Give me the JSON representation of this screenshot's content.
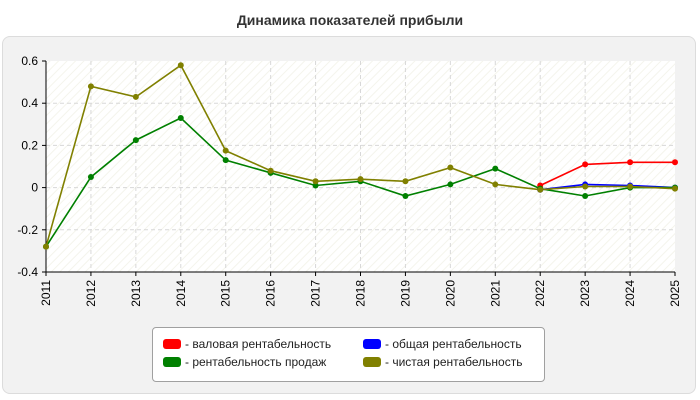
{
  "chart_data": {
    "type": "line",
    "title": "Динамика показателей прибыли",
    "xlabel": "",
    "ylabel": "",
    "x": [
      "2011",
      "2012",
      "2013",
      "2014",
      "2015",
      "2016",
      "2017",
      "2018",
      "2019",
      "2020",
      "2021",
      "2022",
      "2023",
      "2024",
      "2025"
    ],
    "ylim": [
      -0.4,
      0.6
    ],
    "yticks": [
      "0.6",
      "0.4",
      "0.2",
      "0",
      "-0.2",
      "-0.4"
    ],
    "grid": true,
    "legend_position": "bottom",
    "series": [
      {
        "name": "- валовая рентабельность",
        "color": "#ff0000",
        "values": [
          null,
          null,
          null,
          null,
          null,
          null,
          null,
          null,
          null,
          null,
          null,
          0.01,
          0.11,
          0.12,
          0.12
        ]
      },
      {
        "name": "- общая рентабельность",
        "color": "#0000ff",
        "values": [
          null,
          null,
          null,
          null,
          null,
          null,
          null,
          null,
          null,
          null,
          null,
          -0.01,
          0.015,
          0.01,
          0.0
        ]
      },
      {
        "name": "- рентабельность продаж",
        "color": "#008000",
        "values": [
          -0.28,
          0.05,
          0.225,
          0.33,
          0.13,
          0.07,
          0.01,
          0.03,
          -0.04,
          0.015,
          0.09,
          -0.005,
          -0.04,
          0.0,
          0.0
        ]
      },
      {
        "name": "- чистая рентабельность",
        "color": "#808000",
        "values": [
          -0.28,
          0.48,
          0.43,
          0.58,
          0.175,
          0.08,
          0.03,
          0.04,
          0.03,
          0.095,
          0.015,
          -0.01,
          0.005,
          0.005,
          -0.005
        ]
      }
    ]
  }
}
